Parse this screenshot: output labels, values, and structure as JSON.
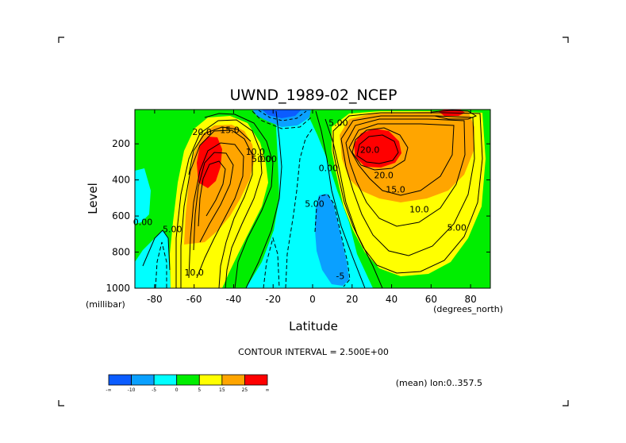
{
  "chart_data": {
    "type": "contour",
    "title": "UWND_1989-02_NCEP",
    "xlabel": "Latitude",
    "ylabel": "Level",
    "x_units": "(degrees_north)",
    "y_units": "(millibar)",
    "x_ticks": [
      -80,
      -60,
      -40,
      -20,
      0,
      20,
      40,
      60,
      80
    ],
    "y_ticks": [
      200,
      400,
      600,
      800,
      1000
    ],
    "xlim": [
      -90,
      90
    ],
    "ylim": [
      1000,
      10
    ],
    "y_inverted": true,
    "contour_interval_text": "CONTOUR INTERVAL = 2.500E+00",
    "subtitle": "(mean) lon:0..357.5",
    "contour_labels": [
      {
        "text": "20.0",
        "lat": -56,
        "lev": 150
      },
      {
        "text": "15.0",
        "lat": -42,
        "lev": 140
      },
      {
        "text": "10.0",
        "lat": -29,
        "lev": 260
      },
      {
        "text": "5.00",
        "lat": -26,
        "lev": 300
      },
      {
        "text": "0.00",
        "lat": -23,
        "lev": 300
      },
      {
        "text": "0.00",
        "lat": -86,
        "lev": 650
      },
      {
        "text": "5.00",
        "lat": -71,
        "lev": 690
      },
      {
        "text": "10.0",
        "lat": -60,
        "lev": 930
      },
      {
        "text": "0.00",
        "lat": 8,
        "lev": 350
      },
      {
        "text": "5.00",
        "lat": 1,
        "lev": 550
      },
      {
        "text": "-5",
        "lat": 14,
        "lev": 950
      },
      {
        "text": "5.00",
        "lat": 13,
        "lev": 100
      },
      {
        "text": "20.0",
        "lat": 29,
        "lev": 250
      },
      {
        "text": "20.0",
        "lat": 36,
        "lev": 390
      },
      {
        "text": "15.0",
        "lat": 42,
        "lev": 470
      },
      {
        "text": "10.0",
        "lat": 54,
        "lev": 580
      },
      {
        "text": "5.00",
        "lat": 73,
        "lev": 680
      }
    ],
    "colorbar": {
      "boundaries": [
        "-∞",
        "-10",
        "-5",
        "0",
        "5",
        "15",
        "25",
        "∞"
      ],
      "colors": [
        "#0b5cff",
        "#0aa0ff",
        "#00ffff",
        "#00ee00",
        "#ffff00",
        "#ffa500",
        "#ff0000"
      ]
    }
  }
}
